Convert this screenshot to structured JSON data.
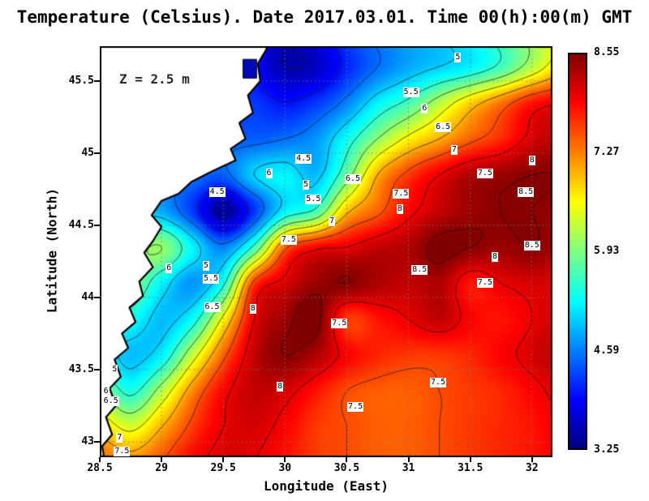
{
  "title": "Temperature (Celsius). Date 2017.03.01. Time 00(h):00(m) GMT",
  "annotation": "Z = 2.5 m",
  "axes": {
    "xlabel": "Longitude (East)",
    "ylabel": "Latitude (North)",
    "x_range": [
      28.5,
      32.166
    ],
    "y_range": [
      42.893,
      45.741
    ],
    "x_ticks": [
      {
        "v": 28.5,
        "label": "28.5"
      },
      {
        "v": 29,
        "label": "29"
      },
      {
        "v": 29.5,
        "label": "29.5"
      },
      {
        "v": 30,
        "label": "30"
      },
      {
        "v": 30.5,
        "label": "30.5"
      },
      {
        "v": 31,
        "label": "31"
      },
      {
        "v": 31.5,
        "label": "31.5"
      },
      {
        "v": 32,
        "label": "32"
      }
    ],
    "y_ticks": [
      {
        "v": 43,
        "label": "43"
      },
      {
        "v": 43.5,
        "label": "43.5"
      },
      {
        "v": 44,
        "label": "44"
      },
      {
        "v": 44.5,
        "label": "44.5"
      },
      {
        "v": 45,
        "label": "45"
      },
      {
        "v": 45.5,
        "label": "45.5"
      }
    ]
  },
  "colorbar": {
    "min": 3.25,
    "max": 8.55,
    "tick_labels": [
      "8.55",
      "7.27",
      "5.93",
      "4.59",
      "3.25"
    ],
    "top_color": "#800000",
    "bottom_color": "#000080"
  },
  "chart_data": {
    "type": "heatmap",
    "variable": "Temperature (Celsius)",
    "depth": "2.5 m",
    "date": "2017.03.01",
    "time": "00(h):00(m) GMT",
    "colormap": "jet",
    "value_range": [
      3.25,
      8.55
    ],
    "lon": [
      28.5,
      28.75,
      29.0,
      29.25,
      29.5,
      29.75,
      30.0,
      30.25,
      30.5,
      30.75,
      31.0,
      31.25,
      31.5,
      31.75,
      32.0,
      32.25
    ],
    "lat_north_to_south": [
      45.85,
      45.6,
      45.35,
      45.1,
      44.85,
      44.6,
      44.35,
      44.1,
      43.85,
      43.6,
      43.35,
      43.1,
      42.85
    ],
    "values": [
      [
        4.5,
        4.4,
        4.3,
        4.2,
        4.0,
        3.9,
        3.6,
        3.8,
        4.3,
        4.6,
        4.8,
        5.0,
        5.3,
        5.7,
        6.1,
        6.5
      ],
      [
        4.5,
        4.5,
        4.4,
        4.3,
        4.1,
        3.9,
        3.5,
        3.6,
        4.1,
        4.5,
        4.8,
        5.0,
        5.2,
        5.6,
        6.2,
        6.8
      ],
      [
        4.4,
        4.4,
        4.4,
        4.3,
        4.2,
        4.2,
        4.0,
        4.2,
        4.6,
        5.2,
        5.6,
        6.2,
        6.8,
        7.3,
        7.8,
        8.0
      ],
      [
        4.5,
        4.5,
        4.5,
        4.4,
        4.4,
        4.4,
        4.5,
        4.7,
        5.3,
        6.0,
        6.6,
        7.0,
        7.4,
        7.7,
        8.1,
        8.3
      ],
      [
        4.6,
        4.6,
        4.6,
        4.5,
        4.4,
        5.0,
        5.2,
        4.9,
        5.8,
        7.0,
        7.6,
        8.0,
        8.3,
        8.4,
        8.5,
        8.5
      ],
      [
        4.8,
        4.9,
        4.8,
        4.2,
        3.4,
        4.2,
        5.2,
        5.6,
        6.9,
        7.4,
        7.9,
        8.2,
        8.4,
        8.5,
        8.5,
        8.4
      ],
      [
        5.5,
        5.8,
        6.0,
        5.2,
        4.6,
        5.6,
        7.4,
        7.9,
        8.0,
        8.2,
        8.3,
        8.6,
        8.5,
        8.4,
        8.5,
        8.3
      ],
      [
        5.6,
        5.9,
        5.2,
        4.7,
        5.4,
        7.6,
        8.1,
        8.4,
        8.5,
        8.3,
        8.2,
        8.3,
        7.8,
        8.0,
        8.1,
        8.1
      ],
      [
        5.5,
        5.3,
        4.9,
        5.3,
        6.6,
        8.0,
        8.4,
        8.6,
        7.6,
        7.8,
        8.0,
        8.2,
        7.9,
        7.8,
        8.0,
        8.2
      ],
      [
        5.2,
        4.9,
        5.2,
        6.3,
        7.4,
        8.2,
        8.5,
        8.3,
        7.9,
        7.7,
        7.6,
        7.6,
        7.7,
        7.9,
        8.1,
        8.3
      ],
      [
        6.0,
        5.4,
        6.2,
        7.2,
        7.9,
        8.2,
        8.1,
        7.8,
        7.5,
        7.4,
        7.4,
        7.5,
        7.6,
        7.7,
        7.9,
        8.1
      ],
      [
        6.8,
        6.4,
        7.0,
        7.6,
        8.0,
        8.1,
        7.9,
        7.6,
        7.5,
        7.4,
        7.4,
        7.5,
        7.6,
        7.7,
        7.8,
        8.0
      ],
      [
        7.4,
        7.2,
        7.5,
        7.9,
        8.1,
        8.0,
        7.8,
        7.6,
        7.5,
        7.4,
        7.4,
        7.5,
        7.6,
        7.7,
        7.8,
        7.9
      ]
    ],
    "contour_levels": [
      3.5,
      4,
      4.5,
      5,
      5.5,
      6,
      6.5,
      7,
      7.5,
      8,
      8.5
    ],
    "contour_labels": [
      {
        "lon": 31.4,
        "lat": 45.66,
        "text": "5"
      },
      {
        "lon": 31.02,
        "lat": 45.42,
        "text": "5.5"
      },
      {
        "lon": 31.13,
        "lat": 45.31,
        "text": "6"
      },
      {
        "lon": 31.28,
        "lat": 45.18,
        "text": "6.5"
      },
      {
        "lon": 31.37,
        "lat": 45.02,
        "text": "7"
      },
      {
        "lon": 31.62,
        "lat": 44.86,
        "text": "7.5"
      },
      {
        "lon": 32.0,
        "lat": 44.95,
        "text": "8"
      },
      {
        "lon": 31.95,
        "lat": 44.73,
        "text": "8.5"
      },
      {
        "lon": 30.15,
        "lat": 44.96,
        "text": "4.5"
      },
      {
        "lon": 29.45,
        "lat": 44.73,
        "text": "4.5"
      },
      {
        "lon": 29.87,
        "lat": 44.86,
        "text": "6"
      },
      {
        "lon": 30.17,
        "lat": 44.78,
        "text": "5"
      },
      {
        "lon": 30.23,
        "lat": 44.68,
        "text": "5.5"
      },
      {
        "lon": 30.55,
        "lat": 44.82,
        "text": "6.5"
      },
      {
        "lon": 30.38,
        "lat": 44.53,
        "text": "7"
      },
      {
        "lon": 30.03,
        "lat": 44.4,
        "text": "7.5"
      },
      {
        "lon": 30.94,
        "lat": 44.72,
        "text": "7.5"
      },
      {
        "lon": 30.93,
        "lat": 44.61,
        "text": "8"
      },
      {
        "lon": 31.09,
        "lat": 44.19,
        "text": "8.5"
      },
      {
        "lon": 32.0,
        "lat": 44.36,
        "text": "8.5"
      },
      {
        "lon": 31.7,
        "lat": 44.28,
        "text": "8"
      },
      {
        "lon": 31.62,
        "lat": 44.1,
        "text": "7.5"
      },
      {
        "lon": 29.36,
        "lat": 44.22,
        "text": "5"
      },
      {
        "lon": 29.4,
        "lat": 44.13,
        "text": "5.5"
      },
      {
        "lon": 29.06,
        "lat": 44.2,
        "text": "6"
      },
      {
        "lon": 29.41,
        "lat": 43.93,
        "text": "6.5"
      },
      {
        "lon": 29.74,
        "lat": 43.92,
        "text": "8"
      },
      {
        "lon": 30.44,
        "lat": 43.82,
        "text": "7.5"
      },
      {
        "lon": 29.96,
        "lat": 43.38,
        "text": "8"
      },
      {
        "lon": 30.57,
        "lat": 43.24,
        "text": "7.5"
      },
      {
        "lon": 31.24,
        "lat": 43.41,
        "text": "7.5"
      },
      {
        "lon": 28.62,
        "lat": 43.5,
        "text": "5"
      },
      {
        "lon": 28.55,
        "lat": 43.35,
        "text": "6"
      },
      {
        "lon": 28.59,
        "lat": 43.28,
        "text": "6.5"
      },
      {
        "lon": 28.66,
        "lat": 43.03,
        "text": "7"
      },
      {
        "lon": 28.68,
        "lat": 42.93,
        "text": "7.5"
      }
    ],
    "land_polygon": [
      [
        29.88,
        45.95
      ],
      [
        29.85,
        45.72
      ],
      [
        29.78,
        45.62
      ],
      [
        29.8,
        45.5
      ],
      [
        29.7,
        45.4
      ],
      [
        29.74,
        45.28
      ],
      [
        29.63,
        45.21
      ],
      [
        29.68,
        45.1
      ],
      [
        29.56,
        45.03
      ],
      [
        29.6,
        44.95
      ],
      [
        29.4,
        44.87
      ],
      [
        29.24,
        44.8
      ],
      [
        29.14,
        44.72
      ],
      [
        29.0,
        44.67
      ],
      [
        28.92,
        44.57
      ],
      [
        29.0,
        44.49
      ],
      [
        28.93,
        44.39
      ],
      [
        28.86,
        44.31
      ],
      [
        28.93,
        44.21
      ],
      [
        28.82,
        44.11
      ],
      [
        28.85,
        44.01
      ],
      [
        28.74,
        43.93
      ],
      [
        28.79,
        43.83
      ],
      [
        28.68,
        43.75
      ],
      [
        28.73,
        43.65
      ],
      [
        28.62,
        43.57
      ],
      [
        28.67,
        43.45
      ],
      [
        28.58,
        43.37
      ],
      [
        28.63,
        43.25
      ],
      [
        28.55,
        43.17
      ],
      [
        28.6,
        43.05
      ],
      [
        28.52,
        42.97
      ],
      [
        28.55,
        42.8
      ],
      [
        28.3,
        42.8
      ],
      [
        28.3,
        45.95
      ]
    ],
    "lagoons": [
      {
        "lon_min": 29.66,
        "lon_max": 29.77,
        "lat_min": 45.52,
        "lat_max": 45.65,
        "color": "#0009b8"
      }
    ],
    "grid": "dotted at every 0.5 degree",
    "legend_position": "right colorbar"
  }
}
